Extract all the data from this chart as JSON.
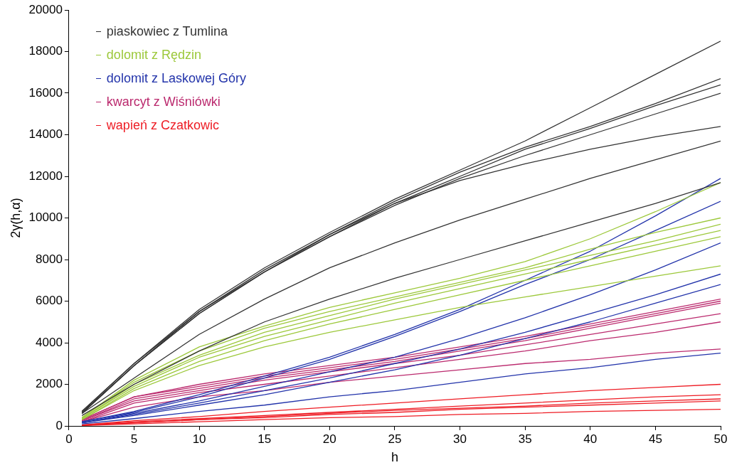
{
  "chart_data": {
    "type": "line",
    "xlabel": "h",
    "ylabel": "2γ(h,α)",
    "x": [
      1,
      5,
      10,
      15,
      20,
      25,
      30,
      35,
      40,
      45,
      50
    ],
    "xlim": [
      0,
      50
    ],
    "xticks": [
      0,
      5,
      10,
      15,
      20,
      25,
      30,
      35,
      40,
      45,
      50
    ],
    "ylim": [
      0,
      20000
    ],
    "yticks": [
      0,
      2000,
      4000,
      6000,
      8000,
      10000,
      12000,
      14000,
      16000,
      18000,
      20000
    ],
    "grid": false,
    "marker": "none",
    "line_style": "solid",
    "legend": "top left",
    "series": [
      {
        "name": "piaskowiec z Tumlina",
        "color": "#333333",
        "values": [
          700,
          3000,
          5600,
          7600,
          9300,
          10900,
          12300,
          13700,
          15300,
          16900,
          18500
        ]
      },
      {
        "color": "#333333",
        "values": [
          700,
          3000,
          5500,
          7500,
          9200,
          10800,
          12200,
          13400,
          14400,
          15500,
          16700
        ]
      },
      {
        "color": "#333333",
        "values": [
          650,
          2900,
          5500,
          7400,
          9100,
          10700,
          12000,
          13300,
          14300,
          15400,
          16400
        ]
      },
      {
        "color": "#333333",
        "values": [
          600,
          2900,
          5400,
          7400,
          9100,
          10600,
          11900,
          13000,
          14000,
          15000,
          16000
        ]
      },
      {
        "color": "#333333",
        "values": [
          600,
          2900,
          5400,
          7400,
          9200,
          10700,
          11800,
          12600,
          13300,
          13900,
          14400
        ]
      },
      {
        "color": "#333333",
        "values": [
          600,
          2300,
          4400,
          6100,
          7600,
          8800,
          9900,
          10900,
          11900,
          12800,
          13700
        ]
      },
      {
        "color": "#333333",
        "values": [
          500,
          2000,
          3600,
          5000,
          6100,
          7100,
          8000,
          8900,
          9800,
          10700,
          11700
        ]
      },
      {
        "name": "dolomit z Rędzin",
        "color": "#9cc83a",
        "values": [
          400,
          2200,
          3800,
          4800,
          5700,
          6400,
          7100,
          7900,
          9000,
          10300,
          11700
        ]
      },
      {
        "color": "#9cc83a",
        "values": [
          400,
          2100,
          3600,
          4700,
          5500,
          6200,
          6900,
          7600,
          8500,
          9300,
          10000
        ]
      },
      {
        "color": "#9cc83a",
        "values": [
          350,
          2000,
          3400,
          4500,
          5300,
          6100,
          6800,
          7500,
          8200,
          8900,
          9700
        ]
      },
      {
        "color": "#9cc83a",
        "values": [
          350,
          1900,
          3300,
          4300,
          5100,
          5900,
          6600,
          7300,
          8000,
          8700,
          9400
        ]
      },
      {
        "color": "#9cc83a",
        "values": [
          300,
          1800,
          3100,
          4100,
          4900,
          5600,
          6300,
          7000,
          7700,
          8400,
          9100
        ]
      },
      {
        "color": "#9cc83a",
        "values": [
          300,
          1700,
          2900,
          3800,
          4500,
          5100,
          5700,
          6200,
          6700,
          7200,
          7700
        ]
      },
      {
        "name": "dolomit z Laskowej Góry",
        "color": "#2233aa",
        "values": [
          200,
          700,
          1500,
          2400,
          3300,
          4400,
          5600,
          7000,
          8400,
          10100,
          11900
        ]
      },
      {
        "color": "#2233aa",
        "values": [
          200,
          650,
          1400,
          2300,
          3200,
          4300,
          5500,
          6800,
          8000,
          9400,
          10800
        ]
      },
      {
        "color": "#2233aa",
        "values": [
          150,
          600,
          1200,
          1900,
          2600,
          3300,
          4200,
          5200,
          6300,
          7500,
          8800
        ]
      },
      {
        "color": "#2233aa",
        "values": [
          150,
          550,
          1100,
          1700,
          2300,
          3000,
          3700,
          4500,
          5400,
          6300,
          7300
        ]
      },
      {
        "color": "#2233aa",
        "values": [
          150,
          500,
          1000,
          1500,
          2100,
          2700,
          3400,
          4200,
          5000,
          5900,
          6800
        ]
      },
      {
        "color": "#2233aa",
        "values": [
          100,
          350,
          700,
          1000,
          1400,
          1700,
          2100,
          2500,
          2800,
          3200,
          3500
        ]
      },
      {
        "name": "kwarcyt z Wiśniówki",
        "color": "#bb2a6e",
        "values": [
          300,
          1400,
          2000,
          2500,
          2900,
          3300,
          3800,
          4300,
          4900,
          5500,
          6100
        ]
      },
      {
        "color": "#bb2a6e",
        "values": [
          300,
          1400,
          1900,
          2400,
          2800,
          3200,
          3700,
          4200,
          4800,
          5400,
          6000
        ]
      },
      {
        "color": "#bb2a6e",
        "values": [
          250,
          1300,
          1800,
          2300,
          2700,
          3100,
          3600,
          4100,
          4700,
          5300,
          5900
        ]
      },
      {
        "color": "#bb2a6e",
        "values": [
          250,
          1200,
          1700,
          2200,
          2600,
          3000,
          3400,
          3900,
          4400,
          4900,
          5400
        ]
      },
      {
        "color": "#bb2a6e",
        "values": [
          200,
          1100,
          1600,
          2000,
          2400,
          2800,
          3200,
          3600,
          4100,
          4500,
          5000
        ]
      },
      {
        "color": "#bb2a6e",
        "values": [
          200,
          900,
          1400,
          1700,
          2100,
          2400,
          2700,
          3000,
          3200,
          3500,
          3700
        ]
      },
      {
        "name": "wapień z Czatkowic",
        "color": "#ee1c24",
        "values": [
          50,
          250,
          450,
          700,
          900,
          1100,
          1300,
          1500,
          1700,
          1850,
          2000
        ]
      },
      {
        "color": "#ee1c24",
        "values": [
          50,
          200,
          350,
          500,
          650,
          800,
          950,
          1100,
          1250,
          1400,
          1500
        ]
      },
      {
        "color": "#ee1c24",
        "values": [
          30,
          150,
          300,
          450,
          600,
          750,
          850,
          950,
          1100,
          1200,
          1300
        ]
      },
      {
        "color": "#ee1c24",
        "values": [
          30,
          150,
          300,
          400,
          550,
          650,
          800,
          900,
          1000,
          1100,
          1200
        ]
      },
      {
        "color": "#ee1c24",
        "values": [
          20,
          100,
          200,
          300,
          400,
          450,
          550,
          600,
          700,
          750,
          800
        ]
      }
    ]
  }
}
